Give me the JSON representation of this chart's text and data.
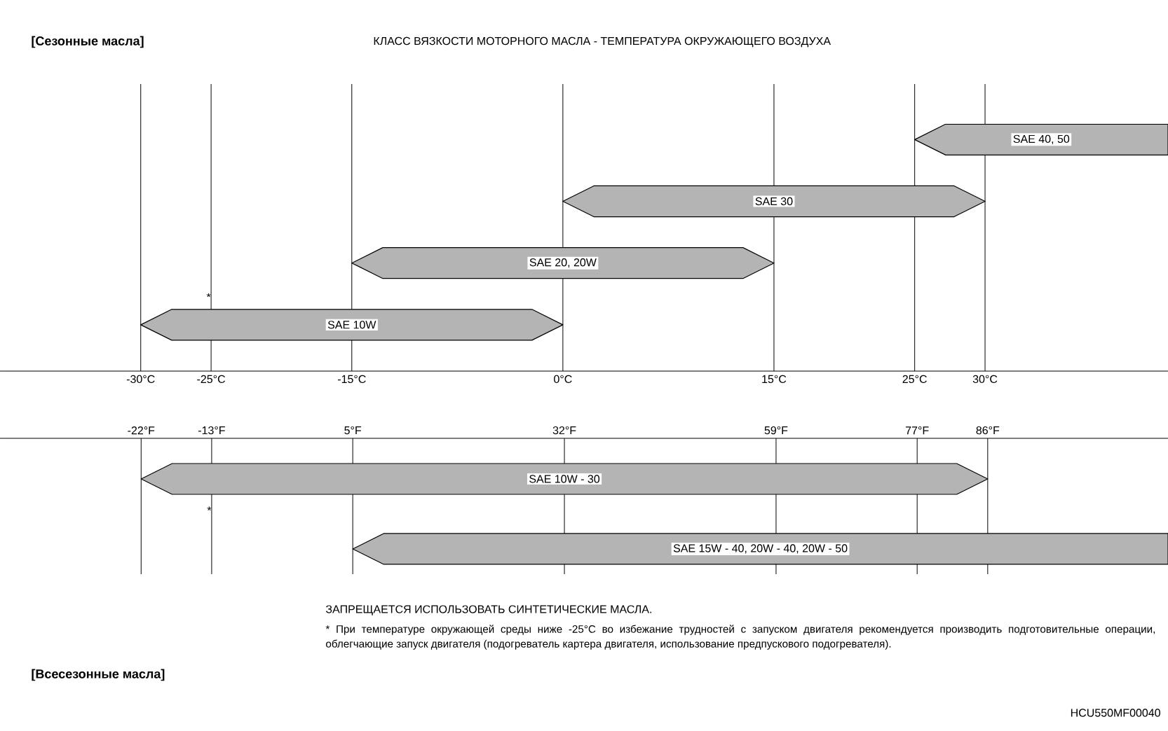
{
  "chart_data": [
    {
      "type": "bar",
      "orientation": "horizontal",
      "title": "КЛАСС ВЯЗКОСТИ МОТОРНОГО МАСЛА - ТЕМПЕРАТУРА ОКРУЖАЮЩЕГО ВОЗДУХА",
      "subtitle": "[Сезонные масла]",
      "categories": [
        "SAE 40, 50",
        "SAE 30",
        "SAE 20, 20W",
        "SAE 10W"
      ],
      "base": [
        25,
        0,
        -15,
        -30
      ],
      "values": [
        18,
        30,
        30,
        30
      ],
      "color": "#b4b4b4",
      "xlim": [
        -40,
        43
      ],
      "xticks": [
        {
          "value": -30,
          "label": "-30°C"
        },
        {
          "value": -25,
          "label": "-25°C"
        },
        {
          "value": -15,
          "label": "-15°C"
        },
        {
          "value": 0,
          "label": "0°C"
        },
        {
          "value": 15,
          "label": "15°C"
        },
        {
          "value": 25,
          "label": "25°C"
        },
        {
          "value": 30,
          "label": "30°C"
        }
      ],
      "grid": "x",
      "annotations": [
        "*"
      ]
    },
    {
      "type": "bar",
      "orientation": "horizontal",
      "title": "[Всесезонные масла]",
      "categories": [
        "SAE 10W - 30",
        "SAE 15W - 40, 20W - 40, 20W - 50"
      ],
      "base": [
        -22,
        5
      ],
      "values": [
        108,
        104
      ],
      "color": "#b4b4b4",
      "xlim": [
        -40,
        109
      ],
      "xticks": [
        {
          "value": -22,
          "label": "-22°F"
        },
        {
          "value": -13,
          "label": "-13°F"
        },
        {
          "value": 5,
          "label": "5°F"
        },
        {
          "value": 32,
          "label": "32°F"
        },
        {
          "value": 59,
          "label": "59°F"
        },
        {
          "value": 77,
          "label": "77°F"
        },
        {
          "value": 86,
          "label": "86°F"
        }
      ],
      "grid": "x",
      "annotations": [
        "*",
        "ЗАПРЕЩАЕТСЯ ИСПОЛЬЗОВАТЬ СИНТЕТИЧЕСКИЕ МАСЛА.",
        "* При температуре окружающей среды ниже -25°C во избежание трудностей с запуском двигателя рекомендуется производить подготовительные операции, облегчающие запуск двигателя (подогреватель картера двигателя, использование предпускового подогревателя).",
        "HCU550MF00040"
      ]
    }
  ]
}
